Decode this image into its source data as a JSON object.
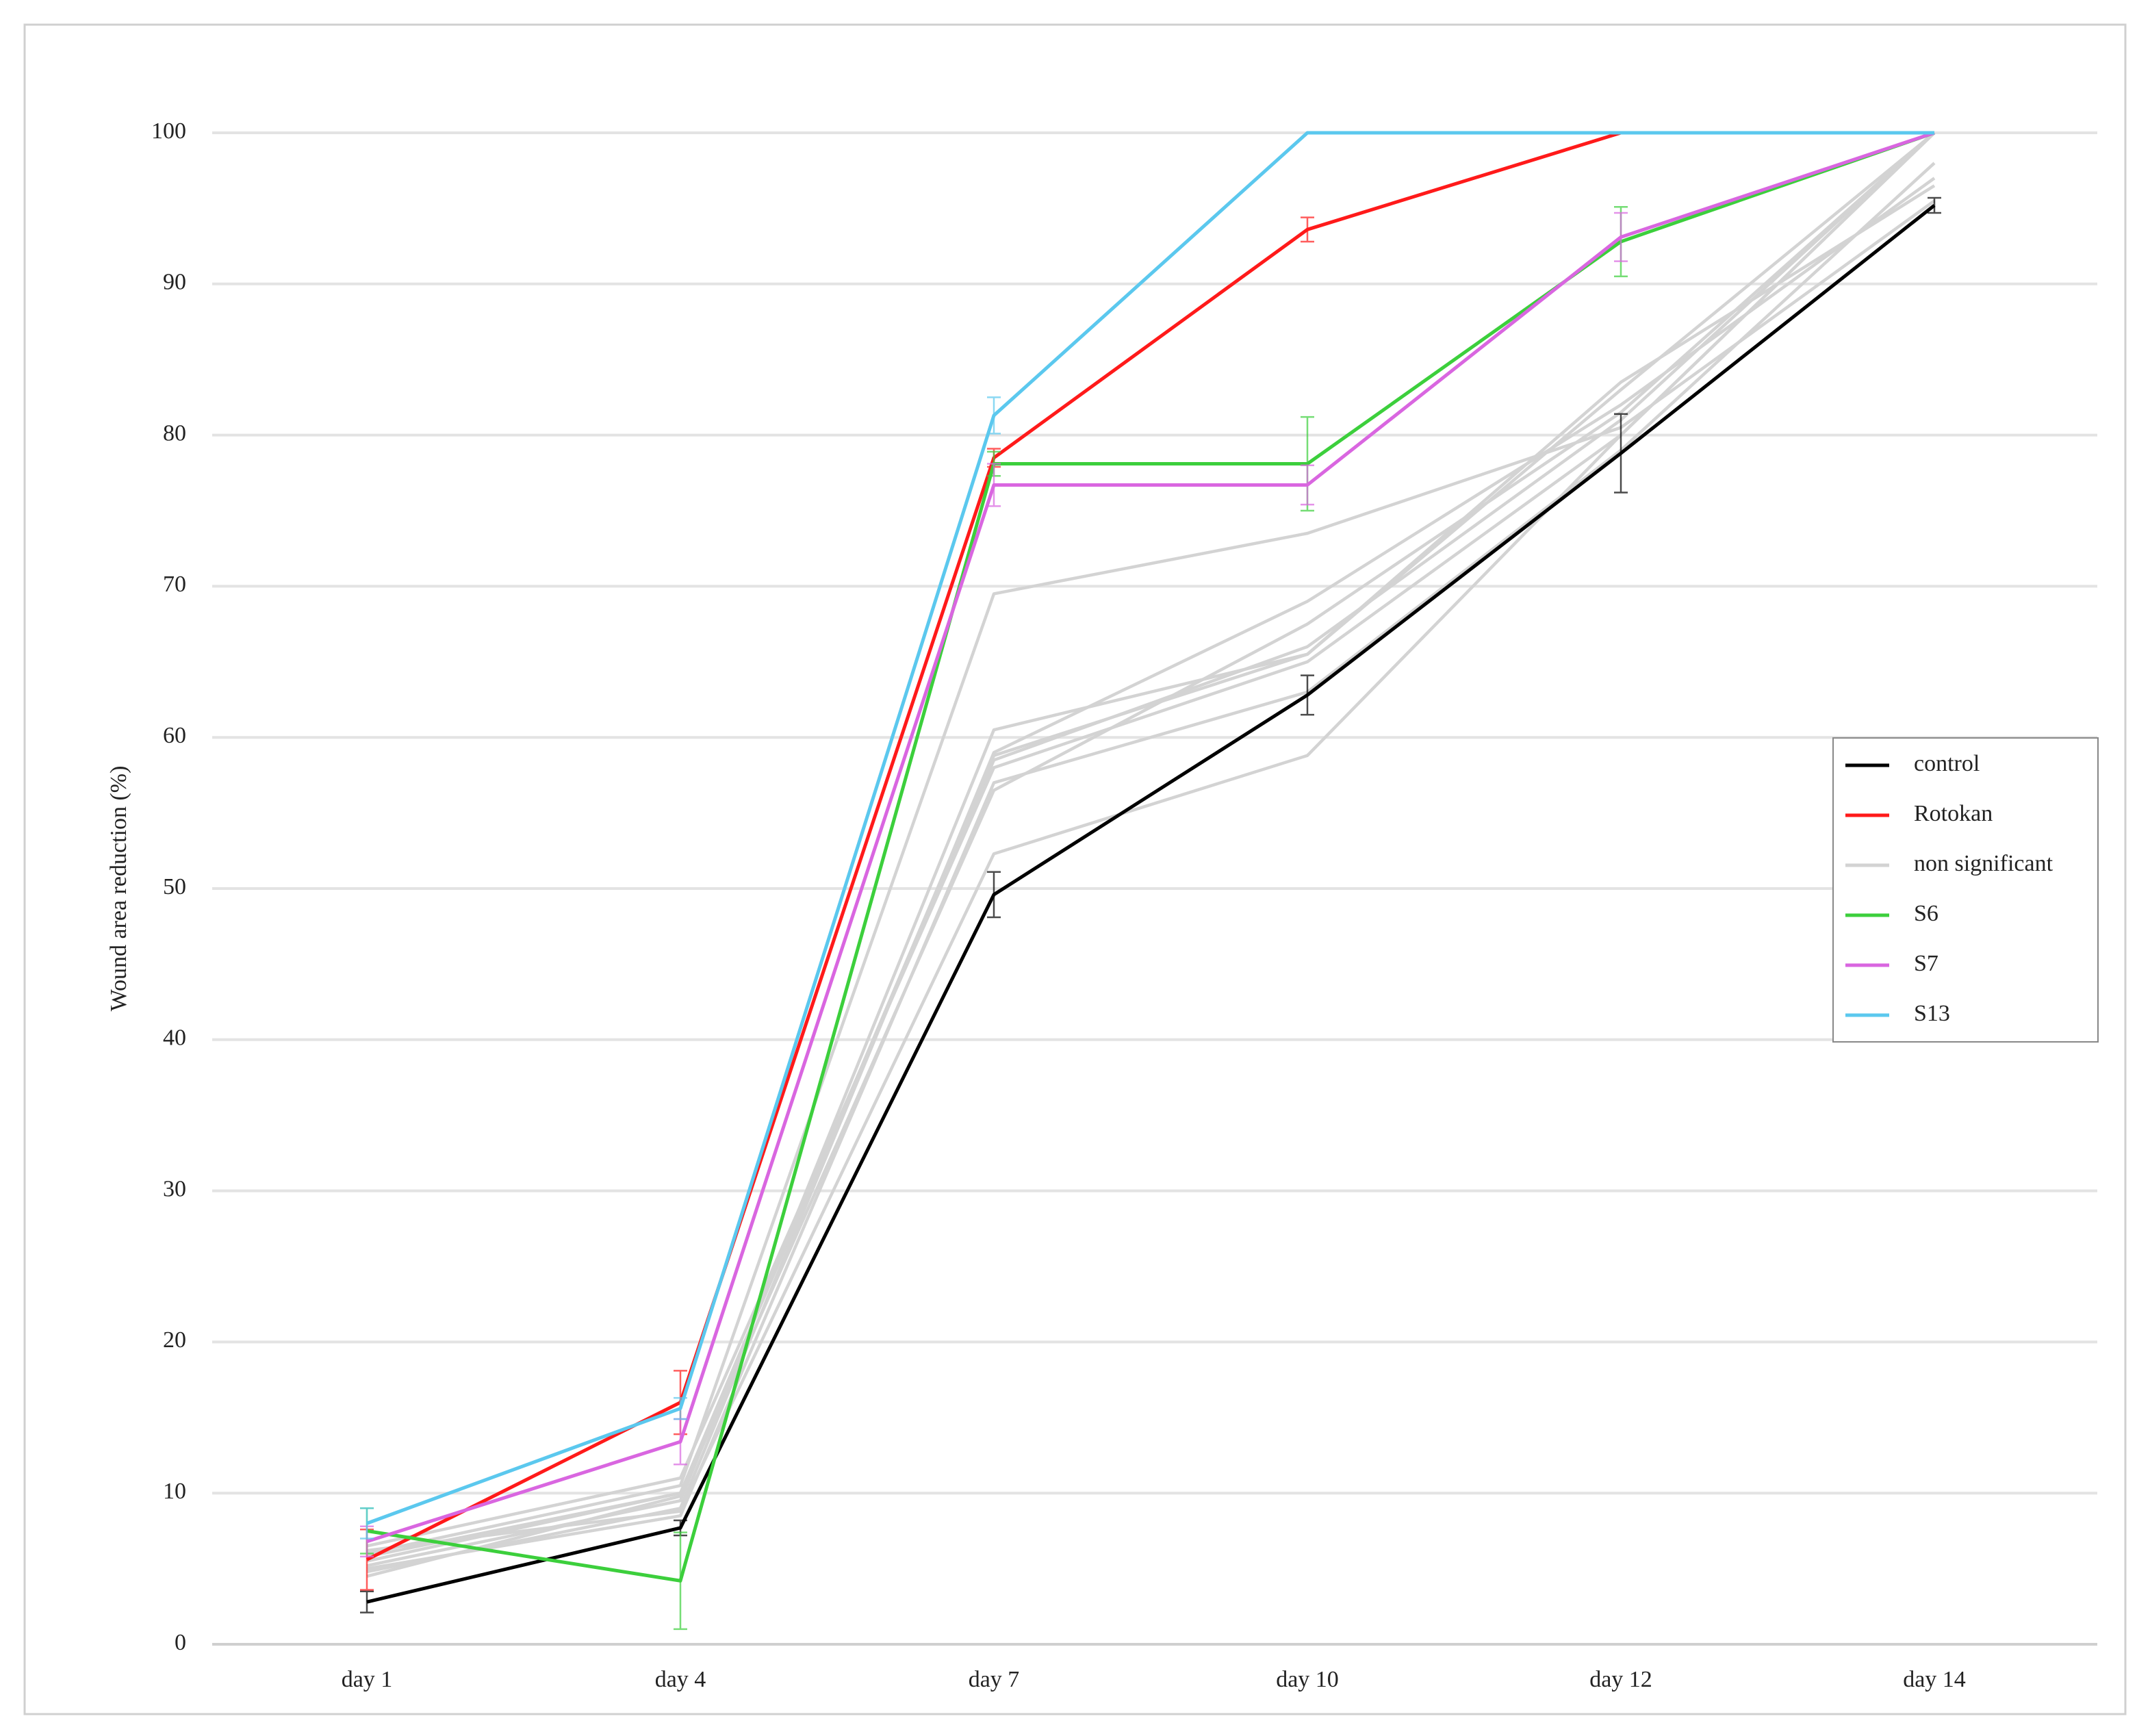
{
  "chart_data": {
    "type": "line",
    "y_label": "Wound area reduction (%)",
    "categories": [
      "day 1",
      "day 4",
      "day 7",
      "day 10",
      "day 12",
      "day 14"
    ],
    "ylim": [
      0,
      100
    ],
    "yticks": [
      0,
      10,
      20,
      30,
      40,
      50,
      60,
      70,
      80,
      90,
      100
    ],
    "grid": true,
    "legend": "right",
    "series": [
      {
        "name": "control",
        "color": "#000000",
        "values": [
          2.8,
          7.7,
          49.6,
          62.8,
          78.8,
          95.2
        ],
        "errors": [
          0.7,
          0.5,
          1.5,
          1.3,
          2.6,
          0.5
        ]
      },
      {
        "name": "Rotokan",
        "color": "#ff1a1a",
        "values": [
          5.6,
          16,
          78.5,
          93.6,
          100,
          100
        ],
        "errors": [
          2,
          2.1,
          0.6,
          0.8,
          null,
          null
        ]
      },
      {
        "name": "non significant",
        "color": "#d3d3d3",
        "values": [
          6,
          10.5,
          69.5,
          73.5,
          80.5,
          95.5
        ]
      },
      {
        "name": "S6",
        "color": "#3ccf3c",
        "values": [
          7.5,
          4.2,
          78.1,
          78.1,
          92.8,
          100
        ],
        "errors": [
          1.5,
          3.2,
          0.8,
          3.1,
          2.3,
          null
        ]
      },
      {
        "name": "S7",
        "color": "#d966e0",
        "values": [
          6.8,
          13.4,
          76.7,
          76.7,
          93.1,
          100
        ],
        "errors": [
          1,
          1.5,
          1.4,
          1.3,
          1.6,
          null
        ]
      },
      {
        "name": "S13",
        "color": "#5bc8ee",
        "values": [
          8,
          15.6,
          81.3,
          100,
          100,
          100
        ],
        "errors": [
          1,
          0.7,
          1.2,
          null,
          null,
          null
        ]
      },
      {
        "color": "#d3d3d3",
        "values": [
          5.2,
          9.5,
          60.5,
          65.5,
          83,
          100
        ]
      },
      {
        "color": "#d3d3d3",
        "values": [
          4.8,
          9,
          59,
          69,
          82,
          97
        ]
      },
      {
        "color": "#d3d3d3",
        "values": [
          5.5,
          10,
          58.5,
          66,
          81,
          100
        ]
      },
      {
        "color": "#d3d3d3",
        "values": [
          6.5,
          11,
          58,
          65,
          80,
          100
        ]
      },
      {
        "color": "#d3d3d3",
        "values": [
          5,
          8.5,
          57,
          63,
          79,
          98
        ]
      },
      {
        "color": "#d3d3d3",
        "values": [
          4.5,
          9.8,
          56.5,
          67.5,
          81.5,
          100
        ]
      },
      {
        "color": "#d3d3d3",
        "values": [
          6.2,
          8.8,
          52.3,
          58.8,
          80,
          100
        ]
      },
      {
        "color": "#d3d3d3",
        "values": [
          5.8,
          10,
          58.8,
          65.5,
          83.5,
          96.5
        ]
      }
    ]
  }
}
